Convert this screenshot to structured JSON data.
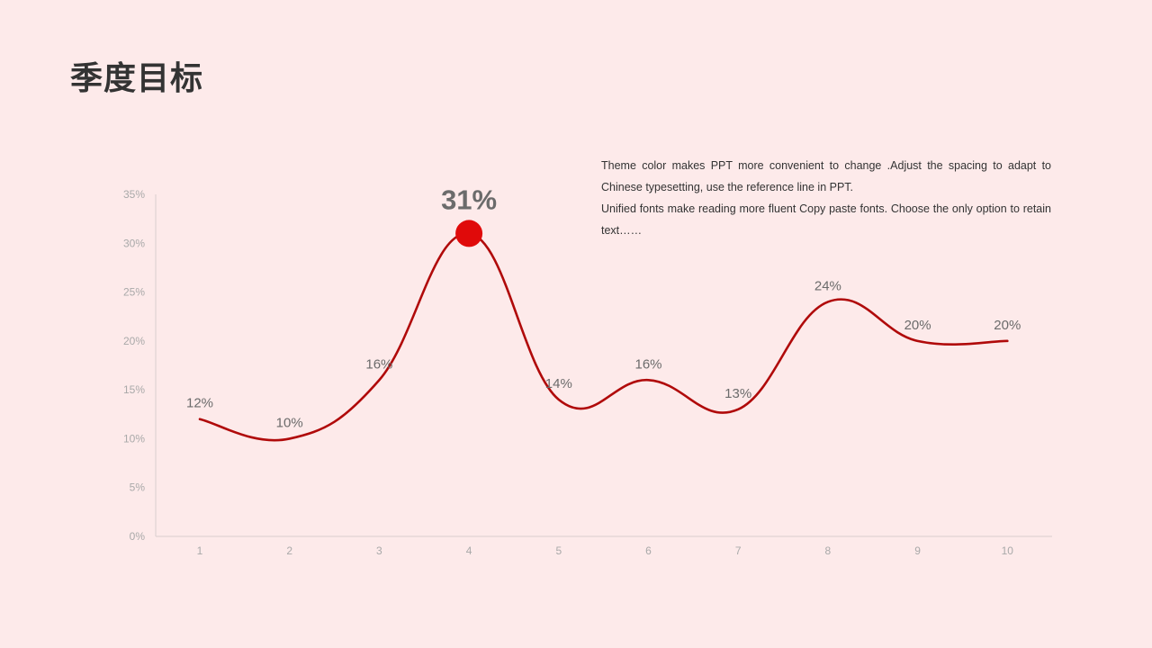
{
  "page": {
    "title": "季度目标",
    "description": [
      "Theme  color makes PPT more convenient  to change .Adjust  the spacing to adapt to Chinese  typesetting, use the reference line in PPT.",
      "Unified  fonts make reading more fluent Copy paste fonts. Choose the only option to retain text……"
    ]
  },
  "colors": {
    "background": "#fdeaea",
    "line": "#b00a0a",
    "highlight_marker": "#e00a0a",
    "axis": "#d9cfcf",
    "title": "#333333"
  },
  "chart_data": {
    "type": "line",
    "title": "",
    "xlabel": "",
    "ylabel": "",
    "smooth": true,
    "categories": [
      "1",
      "2",
      "3",
      "4",
      "5",
      "6",
      "7",
      "8",
      "9",
      "10"
    ],
    "values": [
      12,
      10,
      16,
      31,
      14,
      16,
      13,
      24,
      20,
      20
    ],
    "data_labels": [
      "12%",
      "10%",
      "16%",
      "31%",
      "14%",
      "16%",
      "13%",
      "24%",
      "20%",
      "20%"
    ],
    "highlight_index": 3,
    "ylim": [
      0,
      35
    ],
    "yticks": [
      0,
      5,
      10,
      15,
      20,
      25,
      30,
      35
    ],
    "ytick_labels": [
      "0%",
      "5%",
      "10%",
      "15%",
      "20%",
      "25%",
      "30%",
      "35%"
    ],
    "grid": false,
    "legend": "none"
  }
}
